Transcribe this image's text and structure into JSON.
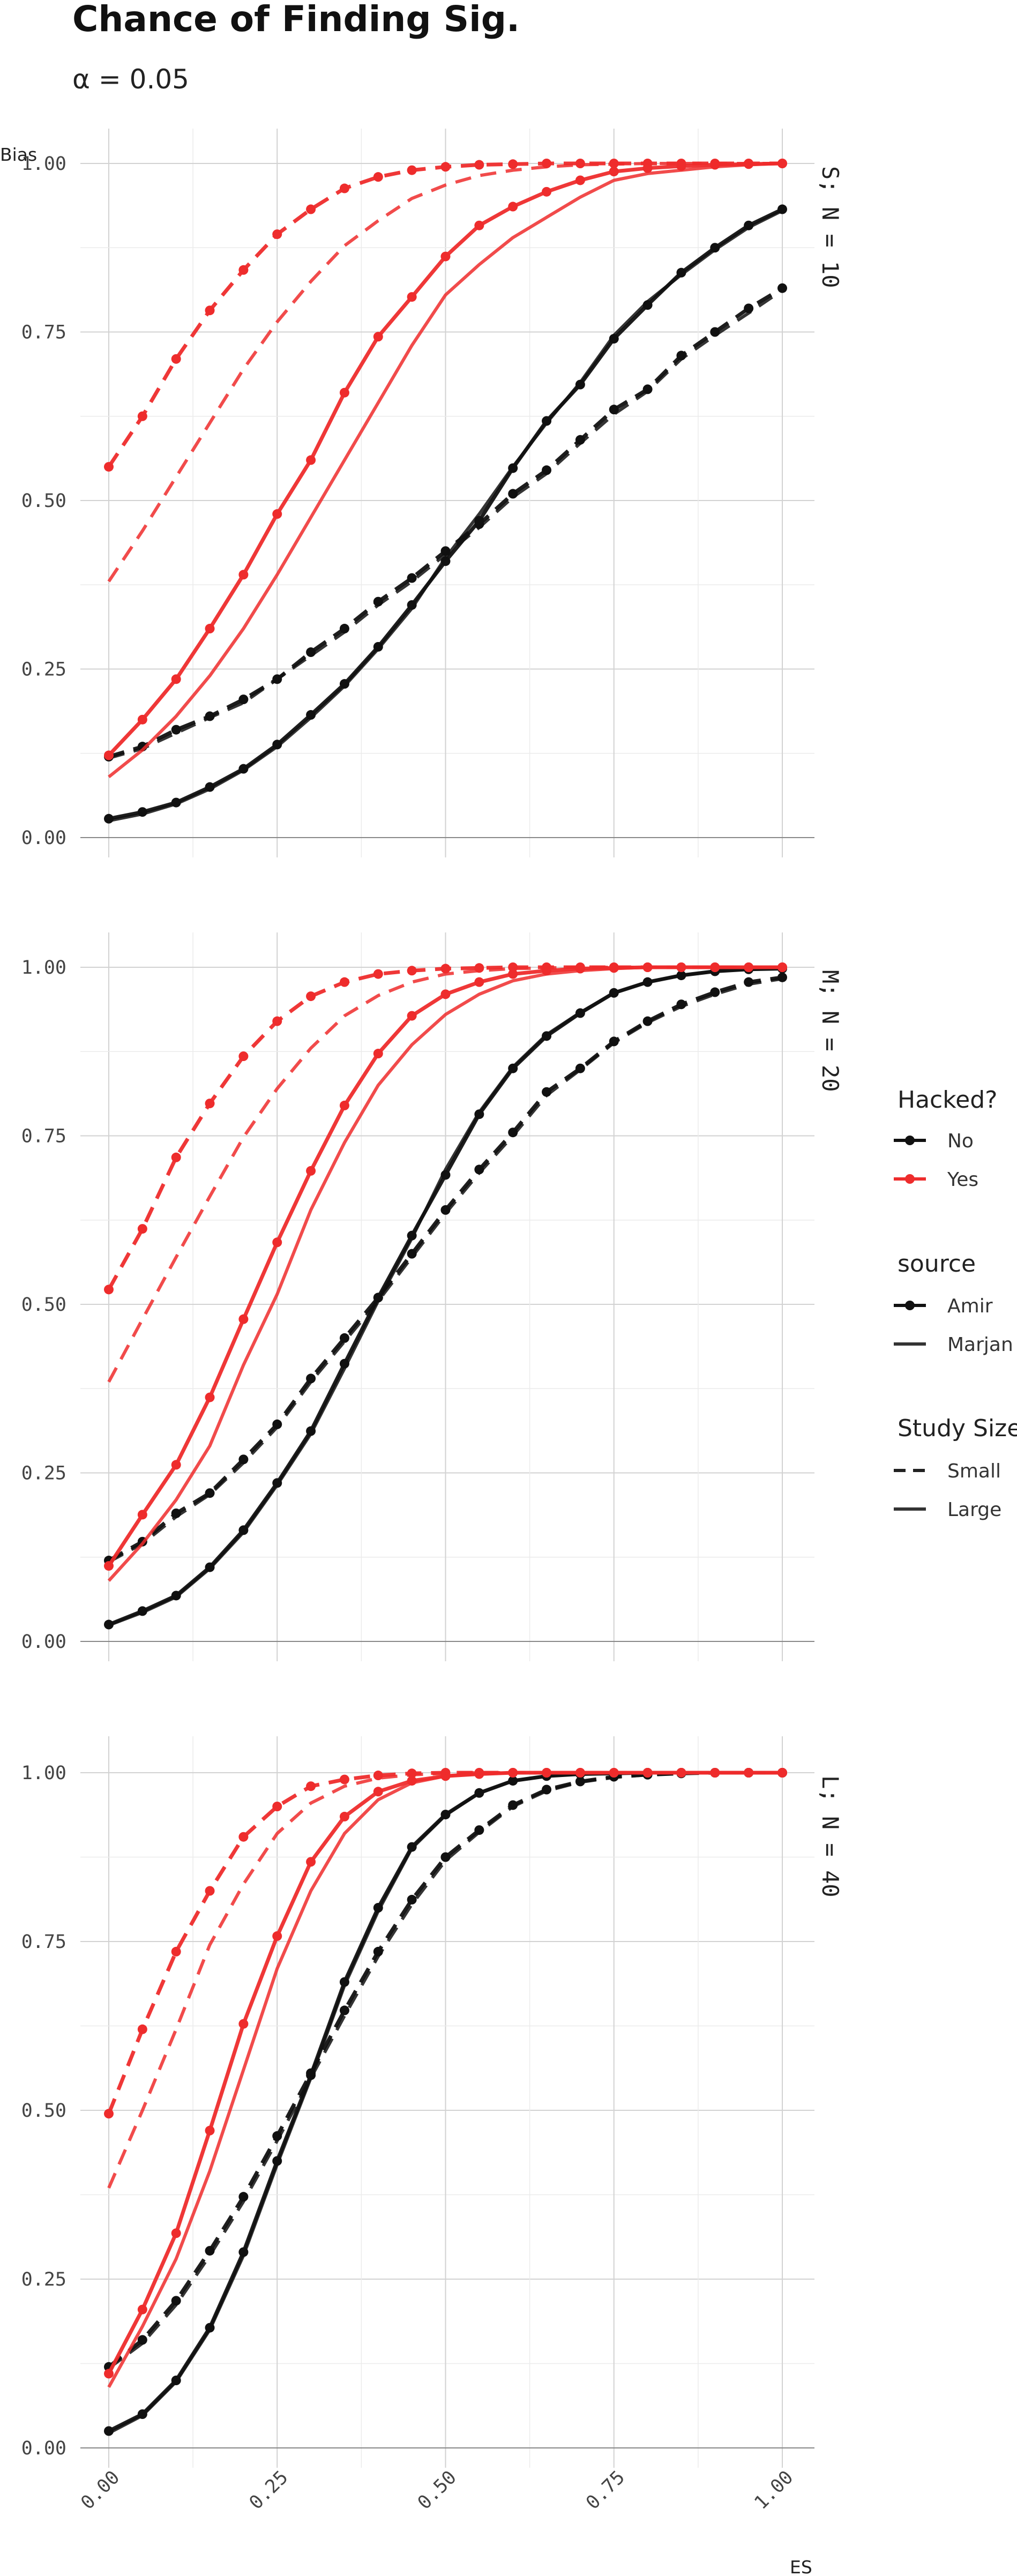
{
  "chart_data": {
    "type": "line",
    "title": "Chance of Finding Sig.",
    "subtitle": "α = 0.05",
    "xlabel": "ES",
    "ylabel": "Bias",
    "xlim": [
      0,
      1
    ],
    "ylim": [
      0,
      1
    ],
    "x_ticks": [
      "0.00",
      "0.25",
      "0.50",
      "0.75",
      "1.00"
    ],
    "y_ticks": [
      "0.00",
      "0.25",
      "0.50",
      "0.75",
      "1.00"
    ],
    "grid": true,
    "legend_position": "right",
    "legend": {
      "hacked": {
        "title": "Hacked?",
        "items": [
          "No",
          "Yes"
        ]
      },
      "source": {
        "title": "source",
        "items": [
          "Amir",
          "Marjan"
        ]
      },
      "size": {
        "title": "Study Size",
        "items": [
          "Small",
          "Large"
        ]
      }
    },
    "colors": {
      "No": "#111111",
      "Yes": "#ee2c2c"
    },
    "x": [
      0,
      0.05,
      0.1,
      0.15,
      0.2,
      0.25,
      0.3,
      0.35,
      0.4,
      0.45,
      0.5,
      0.55,
      0.6,
      0.65,
      0.7,
      0.75,
      0.8,
      0.85,
      0.9,
      0.95,
      1.0
    ],
    "panels": [
      {
        "label": "S; N = 10",
        "series": [
          {
            "hacked": "No",
            "source": "Amir",
            "size": "Small",
            "values": [
              0.12,
              0.135,
              0.16,
              0.18,
              0.205,
              0.235,
              0.275,
              0.31,
              0.35,
              0.385,
              0.425,
              0.465,
              0.51,
              0.545,
              0.59,
              0.635,
              0.665,
              0.715,
              0.75,
              0.785,
              0.815
            ]
          },
          {
            "hacked": "No",
            "source": "Amir",
            "size": "Large",
            "values": [
              0.028,
              0.038,
              0.052,
              0.075,
              0.102,
              0.138,
              0.182,
              0.228,
              0.283,
              0.345,
              0.41,
              0.47,
              0.548,
              0.618,
              0.672,
              0.74,
              0.79,
              0.838,
              0.875,
              0.908,
              0.932
            ]
          },
          {
            "hacked": "No",
            "source": "Marjan",
            "size": "Small",
            "values": [
              0.118,
              0.132,
              0.155,
              0.178,
              0.2,
              0.235,
              0.27,
              0.305,
              0.345,
              0.38,
              0.42,
              0.46,
              0.505,
              0.54,
              0.585,
              0.628,
              0.662,
              0.71,
              0.745,
              0.778,
              0.812
            ]
          },
          {
            "hacked": "No",
            "source": "Marjan",
            "size": "Large",
            "values": [
              0.025,
              0.035,
              0.05,
              0.072,
              0.1,
              0.135,
              0.178,
              0.225,
              0.28,
              0.34,
              0.415,
              0.48,
              0.55,
              0.615,
              0.675,
              0.745,
              0.795,
              0.835,
              0.872,
              0.905,
              0.93
            ]
          },
          {
            "hacked": "Yes",
            "source": "Amir",
            "size": "Small",
            "values": [
              0.55,
              0.625,
              0.71,
              0.782,
              0.842,
              0.895,
              0.932,
              0.963,
              0.98,
              0.99,
              0.995,
              0.998,
              0.999,
              1.0,
              1.0,
              1.0,
              1.0,
              1.0,
              1.0,
              1.0,
              1.0
            ]
          },
          {
            "hacked": "Yes",
            "source": "Amir",
            "size": "Large",
            "values": [
              0.122,
              0.175,
              0.235,
              0.31,
              0.39,
              0.48,
              0.56,
              0.66,
              0.743,
              0.802,
              0.862,
              0.908,
              0.936,
              0.958,
              0.975,
              0.988,
              0.993,
              0.996,
              0.998,
              0.999,
              1.0
            ]
          },
          {
            "hacked": "Yes",
            "source": "Marjan",
            "size": "Small",
            "values": [
              0.38,
              0.455,
              0.535,
              0.615,
              0.695,
              0.765,
              0.825,
              0.878,
              0.915,
              0.948,
              0.968,
              0.982,
              0.99,
              0.995,
              0.998,
              0.999,
              1.0,
              1.0,
              1.0,
              1.0,
              1.0
            ]
          },
          {
            "hacked": "Yes",
            "source": "Marjan",
            "size": "Large",
            "values": [
              0.09,
              0.13,
              0.18,
              0.24,
              0.31,
              0.39,
              0.475,
              0.56,
              0.645,
              0.73,
              0.805,
              0.85,
              0.89,
              0.92,
              0.95,
              0.975,
              0.985,
              0.99,
              0.995,
              0.998,
              1.0
            ]
          }
        ]
      },
      {
        "label": "M; N = 20",
        "series": [
          {
            "hacked": "No",
            "source": "Amir",
            "size": "Small",
            "values": [
              0.12,
              0.148,
              0.19,
              0.22,
              0.27,
              0.322,
              0.39,
              0.45,
              0.51,
              0.575,
              0.64,
              0.7,
              0.755,
              0.815,
              0.85,
              0.89,
              0.92,
              0.945,
              0.963,
              0.978,
              0.985
            ]
          },
          {
            "hacked": "No",
            "source": "Amir",
            "size": "Large",
            "values": [
              0.025,
              0.045,
              0.068,
              0.11,
              0.165,
              0.235,
              0.312,
              0.412,
              0.51,
              0.602,
              0.692,
              0.782,
              0.85,
              0.898,
              0.932,
              0.962,
              0.978,
              0.988,
              0.994,
              0.997,
              0.998
            ]
          },
          {
            "hacked": "No",
            "source": "Marjan",
            "size": "Small",
            "values": [
              0.118,
              0.145,
              0.185,
              0.218,
              0.265,
              0.318,
              0.385,
              0.445,
              0.505,
              0.57,
              0.635,
              0.695,
              0.75,
              0.81,
              0.848,
              0.888,
              0.918,
              0.942,
              0.96,
              0.975,
              0.983
            ]
          },
          {
            "hacked": "No",
            "source": "Marjan",
            "size": "Large",
            "values": [
              0.024,
              0.043,
              0.066,
              0.108,
              0.162,
              0.232,
              0.308,
              0.405,
              0.505,
              0.598,
              0.7,
              0.785,
              0.852,
              0.9,
              0.933,
              0.962,
              0.978,
              0.988,
              0.994,
              0.997,
              0.998
            ]
          },
          {
            "hacked": "Yes",
            "source": "Amir",
            "size": "Small",
            "values": [
              0.522,
              0.612,
              0.718,
              0.798,
              0.868,
              0.92,
              0.957,
              0.978,
              0.99,
              0.995,
              0.998,
              0.999,
              1.0,
              1.0,
              1.0,
              1.0,
              1.0,
              1.0,
              1.0,
              1.0,
              1.0
            ]
          },
          {
            "hacked": "Yes",
            "source": "Amir",
            "size": "Large",
            "values": [
              0.112,
              0.188,
              0.262,
              0.362,
              0.478,
              0.592,
              0.698,
              0.795,
              0.872,
              0.928,
              0.96,
              0.978,
              0.99,
              0.995,
              0.998,
              0.999,
              1.0,
              1.0,
              1.0,
              1.0,
              1.0
            ]
          },
          {
            "hacked": "Yes",
            "source": "Marjan",
            "size": "Small",
            "values": [
              0.385,
              0.478,
              0.57,
              0.66,
              0.748,
              0.82,
              0.88,
              0.928,
              0.958,
              0.978,
              0.99,
              0.995,
              0.998,
              0.999,
              1.0,
              1.0,
              1.0,
              1.0,
              1.0,
              1.0,
              1.0
            ]
          },
          {
            "hacked": "Yes",
            "source": "Marjan",
            "size": "Large",
            "values": [
              0.09,
              0.145,
              0.21,
              0.29,
              0.41,
              0.515,
              0.64,
              0.74,
              0.825,
              0.885,
              0.93,
              0.96,
              0.98,
              0.99,
              0.995,
              0.998,
              1.0,
              1.0,
              1.0,
              1.0,
              1.0
            ]
          }
        ]
      },
      {
        "label": "L; N = 40",
        "series": [
          {
            "hacked": "No",
            "source": "Amir",
            "size": "Small",
            "values": [
              0.12,
              0.16,
              0.218,
              0.292,
              0.372,
              0.462,
              0.555,
              0.648,
              0.735,
              0.812,
              0.875,
              0.915,
              0.952,
              0.975,
              0.987,
              0.994,
              0.997,
              0.999,
              1.0,
              1.0,
              1.0
            ]
          },
          {
            "hacked": "No",
            "source": "Amir",
            "size": "Large",
            "values": [
              0.025,
              0.05,
              0.1,
              0.178,
              0.29,
              0.425,
              0.552,
              0.69,
              0.8,
              0.89,
              0.938,
              0.97,
              0.988,
              0.995,
              0.998,
              0.999,
              1.0,
              1.0,
              1.0,
              1.0,
              1.0
            ]
          },
          {
            "hacked": "No",
            "source": "Marjan",
            "size": "Small",
            "values": [
              0.118,
              0.155,
              0.212,
              0.285,
              0.365,
              0.455,
              0.548,
              0.64,
              0.728,
              0.805,
              0.87,
              0.912,
              0.95,
              0.973,
              0.986,
              0.993,
              0.997,
              0.999,
              1.0,
              1.0,
              1.0
            ]
          },
          {
            "hacked": "No",
            "source": "Marjan",
            "size": "Large",
            "values": [
              0.022,
              0.048,
              0.098,
              0.175,
              0.285,
              0.42,
              0.548,
              0.685,
              0.795,
              0.888,
              0.937,
              0.97,
              0.988,
              0.995,
              0.998,
              0.999,
              1.0,
              1.0,
              1.0,
              1.0,
              1.0
            ]
          },
          {
            "hacked": "Yes",
            "source": "Amir",
            "size": "Small",
            "values": [
              0.495,
              0.62,
              0.735,
              0.825,
              0.905,
              0.95,
              0.98,
              0.99,
              0.996,
              0.999,
              1.0,
              1.0,
              1.0,
              1.0,
              1.0,
              1.0,
              1.0,
              1.0,
              1.0,
              1.0,
              1.0
            ]
          },
          {
            "hacked": "Yes",
            "source": "Amir",
            "size": "Large",
            "values": [
              0.11,
              0.205,
              0.318,
              0.47,
              0.628,
              0.758,
              0.868,
              0.935,
              0.972,
              0.988,
              0.995,
              0.998,
              1.0,
              1.0,
              1.0,
              1.0,
              1.0,
              1.0,
              1.0,
              1.0,
              1.0
            ]
          },
          {
            "hacked": "Yes",
            "source": "Marjan",
            "size": "Small",
            "values": [
              0.385,
              0.5,
              0.62,
              0.745,
              0.835,
              0.91,
              0.955,
              0.98,
              0.992,
              0.997,
              0.999,
              1.0,
              1.0,
              1.0,
              1.0,
              1.0,
              1.0,
              1.0,
              1.0,
              1.0,
              1.0
            ]
          },
          {
            "hacked": "Yes",
            "source": "Marjan",
            "size": "Large",
            "values": [
              0.09,
              0.18,
              0.28,
              0.41,
              0.56,
              0.71,
              0.825,
              0.91,
              0.96,
              0.985,
              0.995,
              0.998,
              1.0,
              1.0,
              1.0,
              1.0,
              1.0,
              1.0,
              1.0,
              1.0,
              1.0
            ]
          }
        ]
      }
    ]
  }
}
